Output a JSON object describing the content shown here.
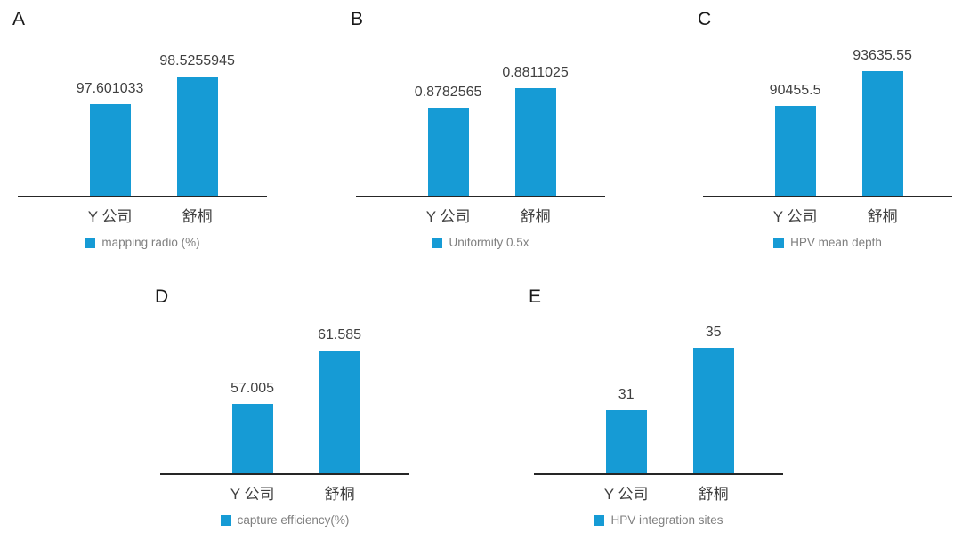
{
  "page": {
    "background": "#ffffff"
  },
  "colors": {
    "bar": "#169BD5",
    "axis": "#262626",
    "value_label": "#404040",
    "category_label": "#404040",
    "legend_text": "#7f7f7f"
  },
  "chart_data": [
    {
      "panel_label": "A",
      "type": "bar",
      "categories": [
        "Y 公司",
        "舒桐"
      ],
      "values": [
        97.601033,
        98.5255945
      ],
      "value_labels": [
        "97.601033",
        "98.5255945"
      ],
      "legend": "mapping radio (%)",
      "ylim": [
        94.5,
        99
      ],
      "grid": false,
      "legend_position": "bottom"
    },
    {
      "panel_label": "B",
      "type": "bar",
      "categories": [
        "Y 公司",
        "舒桐"
      ],
      "values": [
        0.8782565,
        0.8811025
      ],
      "value_labels": [
        "0.8782565",
        "0.8811025"
      ],
      "legend": "Uniformity 0.5x",
      "ylim": [
        0.865,
        0.885
      ],
      "grid": false,
      "legend_position": "bottom"
    },
    {
      "panel_label": "C",
      "type": "bar",
      "categories": [
        "Y 公司",
        "舒桐"
      ],
      "values": [
        90455.5,
        93635.55
      ],
      "value_labels": [
        "90455.5",
        "93635.55"
      ],
      "legend": "HPV mean depth",
      "ylim": [
        82000,
        94500
      ],
      "grid": false,
      "legend_position": "bottom"
    },
    {
      "panel_label": "D",
      "type": "bar",
      "categories": [
        "Y 公司",
        "舒桐"
      ],
      "values": [
        57.005,
        61.585
      ],
      "value_labels": [
        "57.005",
        "61.585"
      ],
      "legend": "capture efficiency(%)",
      "ylim": [
        51,
        62.5
      ],
      "grid": false,
      "legend_position": "bottom"
    },
    {
      "panel_label": "E",
      "type": "bar",
      "categories": [
        "Y 公司",
        "舒桐"
      ],
      "values": [
        31,
        35
      ],
      "value_labels": [
        "31",
        "35"
      ],
      "legend": "HPV integration sites",
      "ylim": [
        27,
        35.5
      ],
      "grid": false,
      "legend_position": "bottom"
    }
  ]
}
